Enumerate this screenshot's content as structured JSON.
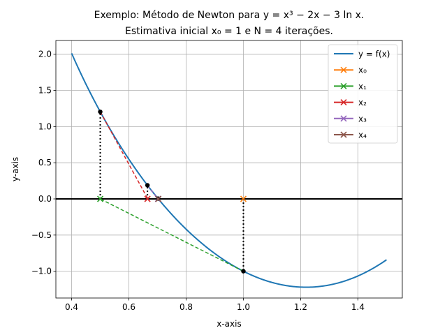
{
  "chart_data": {
    "type": "line",
    "title_lines": [
      "Exemplo: Método de Newton para y = x³ − 2x − 3 ln x.",
      "Estimativa inicial x₀ = 1 e N = 4 iterações."
    ],
    "xlabel": "x-axis",
    "ylabel": "y-axis",
    "xlim": [
      0.345,
      1.555
    ],
    "ylim": [
      -1.37,
      2.19
    ],
    "xticks": [
      0.4,
      0.6,
      0.8,
      1.0,
      1.2,
      1.4
    ],
    "xtick_labels": [
      "0.4",
      "0.6",
      "0.8",
      "1.0",
      "1.2",
      "1.4"
    ],
    "yticks": [
      -1.0,
      -0.5,
      0.0,
      0.5,
      1.0,
      1.5,
      2.0
    ],
    "ytick_labels": [
      "−1.0",
      "−0.5",
      "0.0",
      "0.5",
      "1.0",
      "1.5",
      "2.0"
    ],
    "grid": true,
    "legend_position": "top-right",
    "function": {
      "label": "y = f(x)",
      "expression": "x^3 - 2x - 3 ln x",
      "x_range": [
        0.4,
        1.5
      ],
      "color": "#1f77b4"
    },
    "iterations": [
      {
        "label": "x₀",
        "x": 1.0,
        "color": "#ff7f0e"
      },
      {
        "label": "x₁",
        "x": 0.5,
        "color": "#2ca02c"
      },
      {
        "label": "x₂",
        "x": 0.6649,
        "color": "#d62728"
      },
      {
        "label": "x₃",
        "x": 0.7018,
        "color": "#9467bd"
      },
      {
        "label": "x₄",
        "x": 0.7029,
        "color": "#8c564b"
      }
    ]
  }
}
